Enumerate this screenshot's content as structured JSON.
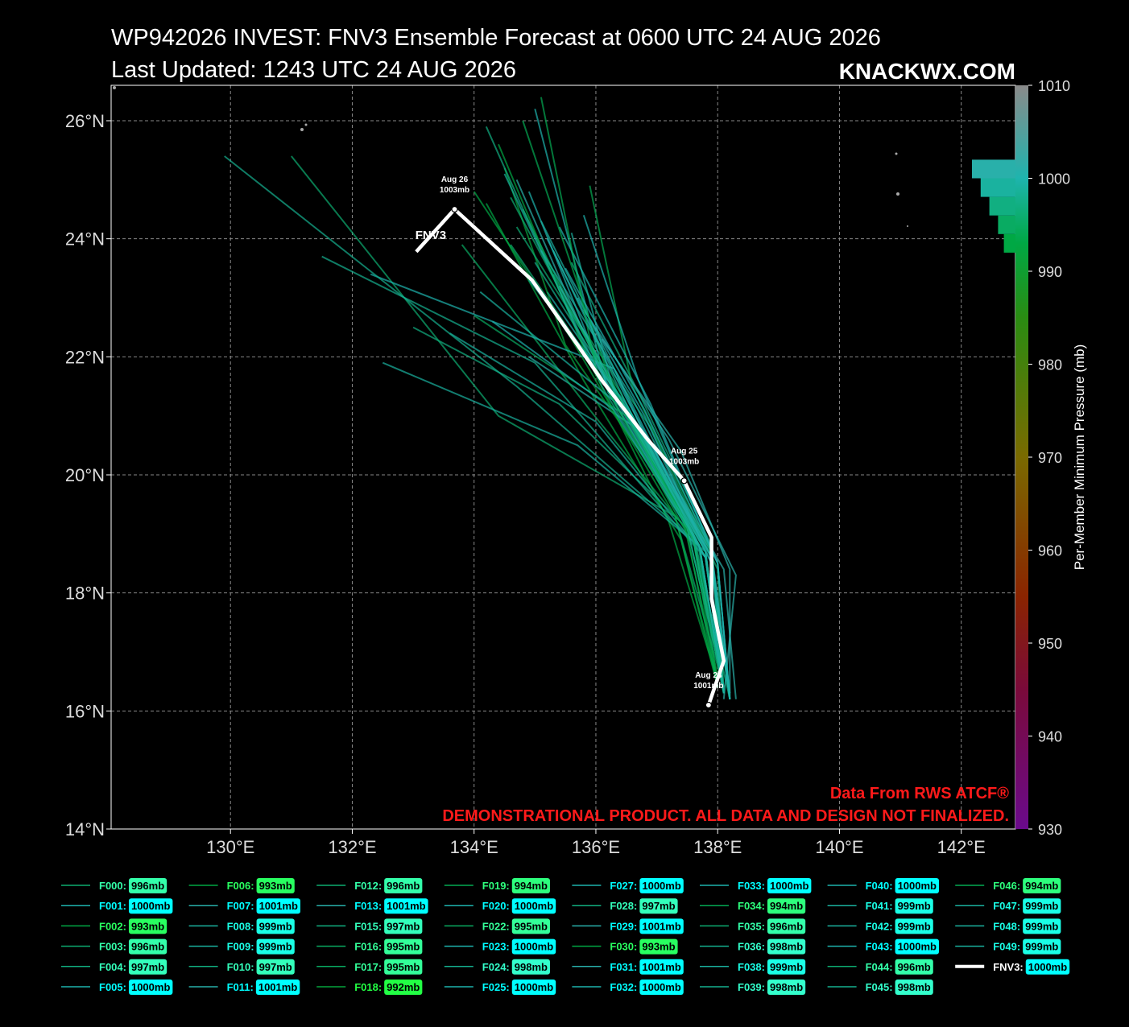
{
  "chart_data": {
    "type": "track",
    "title": "WP942026 INVEST: FNV3 Ensemble Forecast at 0600 UTC 24 AUG 2026",
    "subtitle": "Last Updated: 1243 UTC 24 AUG 2026",
    "watermark": "KNACKWX.COM",
    "xlim": [
      128.04,
      142.89
    ],
    "ylim": [
      14,
      26.6
    ],
    "xticks": [
      {
        "value": 130,
        "label": "130°E"
      },
      {
        "value": 132,
        "label": "132°E"
      },
      {
        "value": 134,
        "label": "134°E"
      },
      {
        "value": 136,
        "label": "136°E"
      },
      {
        "value": 138,
        "label": "138°E"
      },
      {
        "value": 140,
        "label": "140°E"
      },
      {
        "value": 142,
        "label": "142°E"
      }
    ],
    "yticks": [
      {
        "value": 14,
        "label": "14°N"
      },
      {
        "value": 16,
        "label": "16°N"
      },
      {
        "value": 18,
        "label": "18°N"
      },
      {
        "value": 20,
        "label": "20°N"
      },
      {
        "value": 22,
        "label": "22°N"
      },
      {
        "value": 24,
        "label": "24°N"
      },
      {
        "value": 26,
        "label": "26°N"
      }
    ],
    "grid": true,
    "colorbar": {
      "label": "Per-Member Minimum Pressure (mb)",
      "lim": [
        930,
        1010
      ],
      "ticks": [
        930,
        940,
        950,
        960,
        970,
        980,
        990,
        1000,
        1010
      ],
      "colormap": [
        [
          930,
          "#6a0a8c"
        ],
        [
          945,
          "#7a0a3a"
        ],
        [
          955,
          "#8a2400"
        ],
        [
          970,
          "#7a6a00"
        ],
        [
          985,
          "#2a8c12"
        ],
        [
          993,
          "#00a844"
        ],
        [
          1000,
          "#1eb4ae"
        ],
        [
          1010,
          "#8a8a8a"
        ]
      ]
    },
    "box_colormap": [
      [
        992,
        "#22ff44"
      ],
      [
        995,
        "#33ff99"
      ],
      [
        998,
        "#33ffcc"
      ],
      [
        1000,
        "#00ffff"
      ]
    ],
    "histogram": {
      "bins": [
        992,
        994,
        996,
        998,
        1000,
        1002
      ],
      "counts": [
        4,
        6,
        9,
        12,
        15
      ]
    },
    "notes": [
      "Data From RWS ATCF®",
      "DEMONSTRATIONAL PRODUCT. ALL DATA AND DESIGN NOT FINALIZED."
    ],
    "members": [
      {
        "label": "F000:",
        "pressure": 996,
        "pressure_label": "996mb",
        "lon": [
          138.1,
          137.8,
          136.4,
          134.6
        ],
        "lat": [
          16.3,
          18.6,
          21.2,
          23.9
        ]
      },
      {
        "label": "F001:",
        "pressure": 1000,
        "pressure_label": "1000mb",
        "lon": [
          138.2,
          137.9,
          136.6,
          135.2
        ],
        "lat": [
          16.2,
          18.7,
          21.0,
          23.1
        ]
      },
      {
        "label": "F002:",
        "pressure": 993,
        "pressure_label": "993mb",
        "lon": [
          138.0,
          137.4,
          135.8,
          134.2
        ],
        "lat": [
          16.4,
          18.9,
          21.6,
          24.6
        ]
      },
      {
        "label": "F003:",
        "pressure": 996,
        "pressure_label": "996mb",
        "lon": [
          138.1,
          138.0,
          136.9,
          135.5
        ],
        "lat": [
          16.3,
          18.4,
          20.8,
          22.9
        ]
      },
      {
        "label": "F004:",
        "pressure": 997,
        "pressure_label": "997mb",
        "lon": [
          138.2,
          137.6,
          135.4,
          133.0
        ],
        "lat": [
          16.2,
          19.0,
          21.2,
          22.5
        ]
      },
      {
        "label": "F005:",
        "pressure": 1000,
        "pressure_label": "1000mb",
        "lon": [
          138.1,
          137.7,
          136.2,
          134.9
        ],
        "lat": [
          16.3,
          18.8,
          21.5,
          24.8
        ]
      },
      {
        "label": "F006:",
        "pressure": 993,
        "pressure_label": "993mb",
        "lon": [
          138.0,
          137.2,
          135.9,
          134.4
        ],
        "lat": [
          16.5,
          19.2,
          21.9,
          25.6
        ]
      },
      {
        "label": "F007:",
        "pressure": 1001,
        "pressure_label": "1001mb",
        "lon": [
          138.1,
          138.3,
          137.2,
          135.8
        ],
        "lat": [
          16.2,
          18.3,
          20.6,
          22.8
        ]
      },
      {
        "label": "F008:",
        "pressure": 999,
        "pressure_label": "999mb",
        "lon": [
          138.2,
          137.8,
          136.0,
          133.6
        ],
        "lat": [
          16.3,
          18.6,
          20.9,
          22.4
        ]
      },
      {
        "label": "F009:",
        "pressure": 999,
        "pressure_label": "999mb",
        "lon": [
          138.1,
          137.5,
          136.3,
          135.1
        ],
        "lat": [
          16.4,
          19.1,
          21.8,
          24.3
        ]
      },
      {
        "label": "F010:",
        "pressure": 997,
        "pressure_label": "997mb",
        "lon": [
          138.1,
          137.9,
          136.7,
          135.6
        ],
        "lat": [
          16.3,
          18.8,
          21.4,
          23.6
        ]
      },
      {
        "label": "F011:",
        "pressure": 1001,
        "pressure_label": "1001mb",
        "lon": [
          138.3,
          138.1,
          136.8,
          134.9
        ],
        "lat": [
          16.2,
          18.4,
          20.7,
          22.0
        ]
      },
      {
        "label": "F012:",
        "pressure": 996,
        "pressure_label": "996mb",
        "lon": [
          138.1,
          137.3,
          134.4,
          131.0
        ],
        "lat": [
          16.4,
          19.3,
          21.0,
          25.4
        ]
      },
      {
        "label": "F013:",
        "pressure": 1001,
        "pressure_label": "1001mb",
        "lon": [
          138.2,
          137.9,
          136.1,
          134.7
        ],
        "lat": [
          16.3,
          18.7,
          21.7,
          25.0
        ]
      },
      {
        "label": "F015:",
        "pressure": 997,
        "pressure_label": "997mb",
        "lon": [
          138.1,
          137.6,
          136.4,
          135.3
        ],
        "lat": [
          16.3,
          18.9,
          21.3,
          23.4
        ]
      },
      {
        "label": "F016:",
        "pressure": 995,
        "pressure_label": "995mb",
        "lon": [
          138.0,
          137.7,
          135.9,
          133.8
        ],
        "lat": [
          16.4,
          18.8,
          21.1,
          23.9
        ]
      },
      {
        "label": "F017:",
        "pressure": 995,
        "pressure_label": "995mb",
        "lon": [
          138.1,
          137.8,
          136.5,
          134.0
        ],
        "lat": [
          16.3,
          18.6,
          21.0,
          22.7
        ]
      },
      {
        "label": "F018:",
        "pressure": 992,
        "pressure_label": "992mb",
        "lon": [
          138.0,
          137.4,
          135.5,
          134.5
        ],
        "lat": [
          16.6,
          19.4,
          22.2,
          25.2
        ]
      },
      {
        "label": "F019:",
        "pressure": 994,
        "pressure_label": "994mb",
        "lon": [
          138.1,
          137.9,
          136.6,
          135.9
        ],
        "lat": [
          16.3,
          18.7,
          21.5,
          24.9
        ]
      },
      {
        "label": "F020:",
        "pressure": 1000,
        "pressure_label": "1000mb",
        "lon": [
          138.2,
          138.0,
          136.9,
          135.4
        ],
        "lat": [
          16.2,
          18.5,
          21.2,
          24.2
        ]
      },
      {
        "label": "F022:",
        "pressure": 995,
        "pressure_label": "995mb",
        "lon": [
          138.1,
          137.6,
          136.0,
          134.8
        ],
        "lat": [
          16.3,
          19.0,
          22.0,
          24.5
        ]
      },
      {
        "label": "F023:",
        "pressure": 1000,
        "pressure_label": "1000mb",
        "lon": [
          138.2,
          137.9,
          136.3,
          132.3
        ],
        "lat": [
          16.2,
          18.5,
          21.8,
          23.4
        ]
      },
      {
        "label": "F024:",
        "pressure": 998,
        "pressure_label": "998mb",
        "lon": [
          138.1,
          137.7,
          135.0,
          131.5
        ],
        "lat": [
          16.3,
          18.7,
          21.9,
          23.7
        ]
      },
      {
        "label": "F025:",
        "pressure": 1000,
        "pressure_label": "1000mb",
        "lon": [
          138.1,
          137.8,
          136.2,
          135.0
        ],
        "lat": [
          16.3,
          18.6,
          21.4,
          26.2
        ]
      },
      {
        "label": "F027:",
        "pressure": 1000,
        "pressure_label": "1000mb",
        "lon": [
          138.2,
          137.9,
          136.8,
          135.7
        ],
        "lat": [
          16.2,
          18.5,
          21.0,
          23.0
        ]
      },
      {
        "label": "F028:",
        "pressure": 997,
        "pressure_label": "997mb",
        "lon": [
          138.1,
          137.5,
          136.1,
          134.2
        ],
        "lat": [
          16.4,
          19.1,
          21.5,
          25.9
        ]
      },
      {
        "label": "F029:",
        "pressure": 1001,
        "pressure_label": "1001mb",
        "lon": [
          138.2,
          138.2,
          137.4,
          136.1
        ],
        "lat": [
          16.2,
          18.4,
          20.4,
          22.3
        ]
      },
      {
        "label": "F030:",
        "pressure": 993,
        "pressure_label": "993mb",
        "lon": [
          138.0,
          137.3,
          135.6,
          134.0
        ],
        "lat": [
          16.5,
          19.3,
          22.3,
          24.8
        ]
      },
      {
        "label": "F031:",
        "pressure": 1001,
        "pressure_label": "1001mb",
        "lon": [
          138.2,
          137.9,
          136.4,
          135.4
        ],
        "lat": [
          16.2,
          18.6,
          21.3,
          23.2
        ]
      },
      {
        "label": "F032:",
        "pressure": 1000,
        "pressure_label": "1000mb",
        "lon": [
          138.1,
          137.8,
          136.3,
          134.3
        ],
        "lat": [
          16.3,
          18.6,
          21.1,
          22.6
        ]
      },
      {
        "label": "F033:",
        "pressure": 1000,
        "pressure_label": "1000mb",
        "lon": [
          138.2,
          138.0,
          136.7,
          135.8
        ],
        "lat": [
          16.2,
          18.5,
          21.6,
          24.4
        ]
      },
      {
        "label": "F034:",
        "pressure": 994,
        "pressure_label": "994mb",
        "lon": [
          138.0,
          137.6,
          136.2,
          134.8
        ],
        "lat": [
          16.4,
          18.9,
          21.7,
          26.0
        ]
      },
      {
        "label": "F035:",
        "pressure": 996,
        "pressure_label": "996mb",
        "lon": [
          138.1,
          137.7,
          136.4,
          134.7
        ],
        "lat": [
          16.3,
          18.8,
          21.4,
          24.2
        ]
      },
      {
        "label": "F036:",
        "pressure": 998,
        "pressure_label": "998mb",
        "lon": [
          138.1,
          137.8,
          136.5,
          135.3
        ],
        "lat": [
          16.3,
          18.7,
          21.2,
          23.8
        ]
      },
      {
        "label": "F038:",
        "pressure": 999,
        "pressure_label": "999mb",
        "lon": [
          138.1,
          137.9,
          136.6,
          134.1
        ],
        "lat": [
          16.3,
          18.6,
          21.0,
          23.1
        ]
      },
      {
        "label": "F039:",
        "pressure": 998,
        "pressure_label": "998mb",
        "lon": [
          138.1,
          137.6,
          134.7,
          129.9
        ],
        "lat": [
          16.3,
          18.9,
          21.5,
          25.4
        ]
      },
      {
        "label": "F040:",
        "pressure": 1000,
        "pressure_label": "1000mb",
        "lon": [
          138.2,
          138.0,
          136.8,
          135.5
        ],
        "lat": [
          16.2,
          18.5,
          21.1,
          23.5
        ]
      },
      {
        "label": "F041:",
        "pressure": 999,
        "pressure_label": "999mb",
        "lon": [
          138.1,
          137.7,
          136.1,
          134.5
        ],
        "lat": [
          16.3,
          18.8,
          21.6,
          25.1
        ]
      },
      {
        "label": "F042:",
        "pressure": 999,
        "pressure_label": "999mb",
        "lon": [
          138.1,
          137.8,
          135.7,
          132.5
        ],
        "lat": [
          16.3,
          18.7,
          20.5,
          21.9
        ]
      },
      {
        "label": "F043:",
        "pressure": 1000,
        "pressure_label": "1000mb",
        "lon": [
          138.2,
          137.9,
          136.5,
          135.2
        ],
        "lat": [
          16.2,
          18.6,
          21.3,
          24.0
        ]
      },
      {
        "label": "F044:",
        "pressure": 996,
        "pressure_label": "996mb",
        "lon": [
          138.1,
          137.6,
          136.2,
          134.6
        ],
        "lat": [
          16.3,
          18.9,
          21.6,
          24.7
        ]
      },
      {
        "label": "F045:",
        "pressure": 998,
        "pressure_label": "998mb",
        "lon": [
          138.1,
          137.8,
          136.4,
          135.0
        ],
        "lat": [
          16.3,
          18.7,
          21.3,
          23.6
        ]
      },
      {
        "label": "F046:",
        "pressure": 994,
        "pressure_label": "994mb",
        "lon": [
          138.0,
          137.5,
          136.0,
          135.1
        ],
        "lat": [
          16.4,
          19.0,
          21.8,
          26.4
        ]
      },
      {
        "label": "F047:",
        "pressure": 999,
        "pressure_label": "999mb",
        "lon": [
          138.1,
          137.8,
          136.3,
          135.6
        ],
        "lat": [
          16.3,
          18.7,
          21.4,
          24.1
        ]
      },
      {
        "label": "F048:",
        "pressure": 999,
        "pressure_label": "999mb",
        "lon": [
          138.1,
          137.7,
          136.5,
          134.9
        ],
        "lat": [
          16.3,
          18.8,
          21.2,
          23.3
        ]
      },
      {
        "label": "F049:",
        "pressure": 999,
        "pressure_label": "999mb",
        "lon": [
          138.2,
          137.9,
          136.6,
          135.1
        ],
        "lat": [
          16.2,
          18.6,
          21.3,
          23.8
        ]
      }
    ],
    "mean": {
      "name": "FNV3",
      "legend_label": "FNV3:",
      "color": "#ffffff",
      "pressure": 1000,
      "pressure_label": "1000mb",
      "lon": [
        137.85,
        138.1,
        137.9,
        137.9,
        137.45,
        136.85,
        136.1,
        135.7,
        134.95,
        133.68,
        133.05
      ],
      "lat": [
        16.1,
        16.85,
        17.9,
        18.94,
        19.9,
        20.6,
        21.6,
        22.2,
        23.3,
        24.5,
        23.78
      ],
      "markers": [
        {
          "lon": 137.85,
          "lat": 16.1,
          "date": "Aug 24",
          "pressure": 1001,
          "pressure_label": "1001mb"
        },
        {
          "lon": 137.45,
          "lat": 19.9,
          "date": "Aug 25",
          "pressure": 1003,
          "pressure_label": "1003mb"
        },
        {
          "lon": 133.68,
          "lat": 24.5,
          "date": "Aug 26",
          "pressure": 1003,
          "pressure_label": "1003mb"
        }
      ]
    }
  }
}
